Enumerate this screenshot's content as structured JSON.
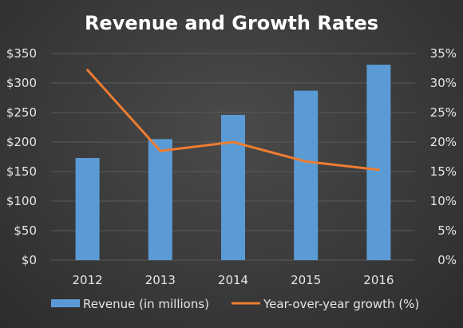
{
  "chart_data": {
    "type": "bar",
    "title": "Revenue and Growth Rates",
    "categories": [
      "2012",
      "2013",
      "2014",
      "2015",
      "2016"
    ],
    "series": [
      {
        "name": "Revenue (in millions)",
        "type": "bar",
        "axis": "left",
        "color": "#5b9bd5",
        "values": [
          173,
          205,
          246,
          287,
          331
        ]
      },
      {
        "name": "Year-over-year growth (%)",
        "type": "line",
        "axis": "right",
        "color": "#ed7d31",
        "values": [
          32.2,
          18.5,
          20.0,
          16.7,
          15.3
        ]
      }
    ],
    "y_left": {
      "lim": [
        0,
        350
      ],
      "ticks": [
        0,
        50,
        100,
        150,
        200,
        250,
        300,
        350
      ],
      "tick_labels": [
        "$0",
        "$50",
        "$100",
        "$150",
        "$200",
        "$250",
        "$300",
        "$350"
      ]
    },
    "y_right": {
      "lim": [
        0,
        35
      ],
      "ticks": [
        0,
        5,
        10,
        15,
        20,
        25,
        30,
        35
      ],
      "tick_labels": [
        "0%",
        "5%",
        "10%",
        "15%",
        "20%",
        "25%",
        "30%",
        "35%"
      ]
    },
    "grid": true,
    "legend_position": "bottom",
    "background": "#3a3a3a"
  }
}
